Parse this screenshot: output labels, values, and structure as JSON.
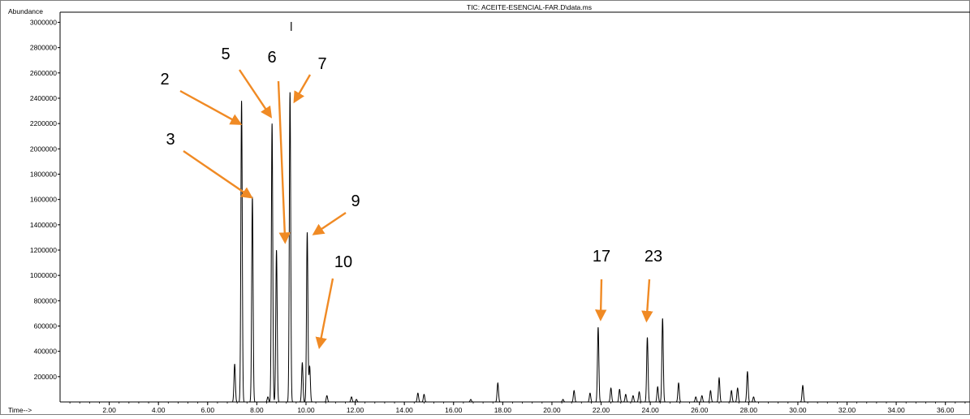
{
  "chart_data": {
    "type": "line",
    "title": "TIC: ACEITE-ESENCIAL-FAR.D\\data.ms",
    "ylabel": "Abundance",
    "xlabel": "Time-->",
    "xlim": [
      0,
      37
    ],
    "ylim": [
      0,
      3080000
    ],
    "x_ticks": [
      "2.00",
      "4.00",
      "6.00",
      "8.00",
      "10.00",
      "12.00",
      "14.00",
      "16.00",
      "18.00",
      "20.00",
      "22.00",
      "24.00",
      "26.00",
      "28.00",
      "30.00",
      "32.00",
      "34.00",
      "36.00"
    ],
    "y_ticks": [
      "200000",
      "400000",
      "600000",
      "800000",
      "1000000",
      "1200000",
      "1400000",
      "1600000",
      "1800000",
      "2000000",
      "2200000",
      "2400000",
      "2600000",
      "2800000",
      "3000000"
    ],
    "grid": false,
    "legend": "none",
    "line_color": "#000000",
    "peaks": [
      {
        "t": 7.1,
        "h": 300000
      },
      {
        "t": 7.38,
        "h": 2380000
      },
      {
        "t": 7.82,
        "h": 1620000
      },
      {
        "t": 8.45,
        "h": 40000
      },
      {
        "t": 8.62,
        "h": 2200000
      },
      {
        "t": 8.8,
        "h": 1200000
      },
      {
        "t": 9.35,
        "h": 2450000
      },
      {
        "t": 9.85,
        "h": 310000
      },
      {
        "t": 10.05,
        "h": 1340000
      },
      {
        "t": 10.15,
        "h": 280000
      },
      {
        "t": 10.85,
        "h": 50000
      },
      {
        "t": 11.85,
        "h": 40000
      },
      {
        "t": 12.05,
        "h": 20000
      },
      {
        "t": 14.55,
        "h": 70000
      },
      {
        "t": 14.8,
        "h": 60000
      },
      {
        "t": 16.7,
        "h": 20000
      },
      {
        "t": 17.8,
        "h": 150000
      },
      {
        "t": 20.45,
        "h": 20000
      },
      {
        "t": 20.9,
        "h": 90000
      },
      {
        "t": 21.55,
        "h": 70000
      },
      {
        "t": 21.88,
        "h": 590000
      },
      {
        "t": 22.4,
        "h": 110000
      },
      {
        "t": 22.75,
        "h": 100000
      },
      {
        "t": 23.0,
        "h": 60000
      },
      {
        "t": 23.3,
        "h": 50000
      },
      {
        "t": 23.55,
        "h": 80000
      },
      {
        "t": 23.88,
        "h": 510000
      },
      {
        "t": 24.3,
        "h": 120000
      },
      {
        "t": 24.5,
        "h": 660000
      },
      {
        "t": 25.15,
        "h": 150000
      },
      {
        "t": 25.85,
        "h": 40000
      },
      {
        "t": 26.1,
        "h": 50000
      },
      {
        "t": 26.45,
        "h": 90000
      },
      {
        "t": 26.8,
        "h": 190000
      },
      {
        "t": 27.3,
        "h": 90000
      },
      {
        "t": 27.55,
        "h": 110000
      },
      {
        "t": 27.95,
        "h": 240000
      },
      {
        "t": 28.2,
        "h": 40000
      },
      {
        "t": 30.2,
        "h": 130000
      }
    ],
    "annotations": [
      {
        "label": "2",
        "target_t": 7.3,
        "target_h": 2200000,
        "color": "#f08a24"
      },
      {
        "label": "3",
        "target_t": 7.75,
        "target_h": 1620000,
        "color": "#f08a24"
      },
      {
        "label": "5",
        "target_t": 8.55,
        "target_h": 2260000,
        "color": "#f08a24"
      },
      {
        "label": "6",
        "target_t": 9.15,
        "target_h": 1270000,
        "color": "#f08a24"
      },
      {
        "label": "7",
        "target_t": 9.55,
        "target_h": 2380000,
        "color": "#f08a24"
      },
      {
        "label": "9",
        "target_t": 10.35,
        "target_h": 1330000,
        "color": "#f08a24"
      },
      {
        "label": "10",
        "target_t": 10.55,
        "target_h": 440000,
        "color": "#f08a24"
      },
      {
        "label": "17",
        "target_t": 21.98,
        "target_h": 660000,
        "color": "#f08a24"
      },
      {
        "label": "23",
        "target_t": 23.85,
        "target_h": 650000,
        "color": "#f08a24"
      }
    ]
  }
}
